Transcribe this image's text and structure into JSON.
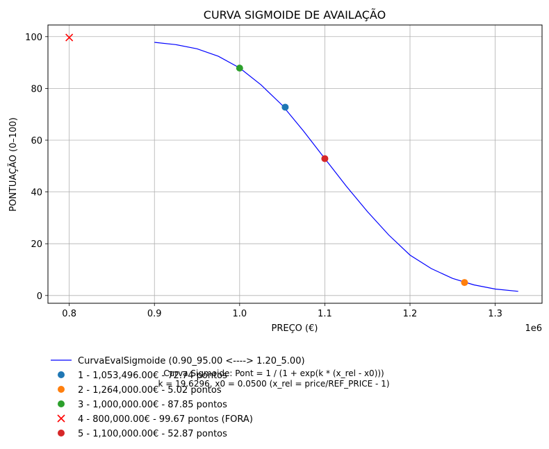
{
  "chart_data": {
    "type": "scatter",
    "title": "CURVA SIGMOIDE DE AVAILAÇÃO",
    "xlabel": "PREÇO (€)",
    "ylabel": "PONTUAÇÃO (0–100)",
    "x_offset_label": "1e6",
    "xlim": [
      775000,
      1355000
    ],
    "ylim": [
      -3,
      104.5
    ],
    "xticks": [
      800000,
      900000,
      1000000,
      1100000,
      1200000,
      1300000
    ],
    "xtick_labels": [
      "0.8",
      "0.9",
      "1.0",
      "1.1",
      "1.2",
      "1.3"
    ],
    "yticks": [
      0,
      20,
      40,
      60,
      80,
      100
    ],
    "ytick_labels": [
      "0",
      "20",
      "40",
      "60",
      "80",
      "100"
    ],
    "grid": true,
    "legend_position": "below plot, left",
    "curve": {
      "name": "CurvaEvalSigmoide (0.90_95.00 <----> 1.20_5.00)",
      "color": "#0000ff",
      "x": [
        900000,
        925000,
        950000,
        975000,
        1000000,
        1025000,
        1050000,
        1075000,
        1100000,
        1125000,
        1150000,
        1175000,
        1200000,
        1225000,
        1250000,
        1275000,
        1300000,
        1327000
      ],
      "y": [
        97.8,
        96.9,
        95.3,
        92.4,
        87.9,
        81.4,
        73.5,
        63.5,
        52.9,
        42.3,
        32.4,
        23.4,
        15.6,
        10.4,
        6.6,
        4.1,
        2.5,
        1.6
      ]
    },
    "points": [
      {
        "label": "1 - 1,053,496.00€ - 72.74 pontos",
        "x": 1053496,
        "y": 72.74,
        "marker": "circle",
        "color": "#1f77b4"
      },
      {
        "label": "2 - 1,264,000.00€ - 5.02 pontos",
        "x": 1264000,
        "y": 5.02,
        "marker": "circle",
        "color": "#ff7f0e"
      },
      {
        "label": "3 - 1,000,000.00€ - 87.85 pontos",
        "x": 1000000,
        "y": 87.85,
        "marker": "circle",
        "color": "#2ca02c"
      },
      {
        "label": "4 - 800,000.00€ - 99.67 pontos (FORA)",
        "x": 800000,
        "y": 99.67,
        "marker": "x",
        "color": "#ff0000"
      },
      {
        "label": "5 - 1,100,000.00€ - 52.87 pontos",
        "x": 1100000,
        "y": 52.87,
        "marker": "circle",
        "color": "#d62728"
      }
    ],
    "annotation": [
      "Curva Sigmoide: Pont = 1 / (1 + exp(k * (x_rel - x0)))",
      "k = 19.6296, x0 = 0.0500 (x_rel = price/REF_PRICE - 1)"
    ]
  }
}
